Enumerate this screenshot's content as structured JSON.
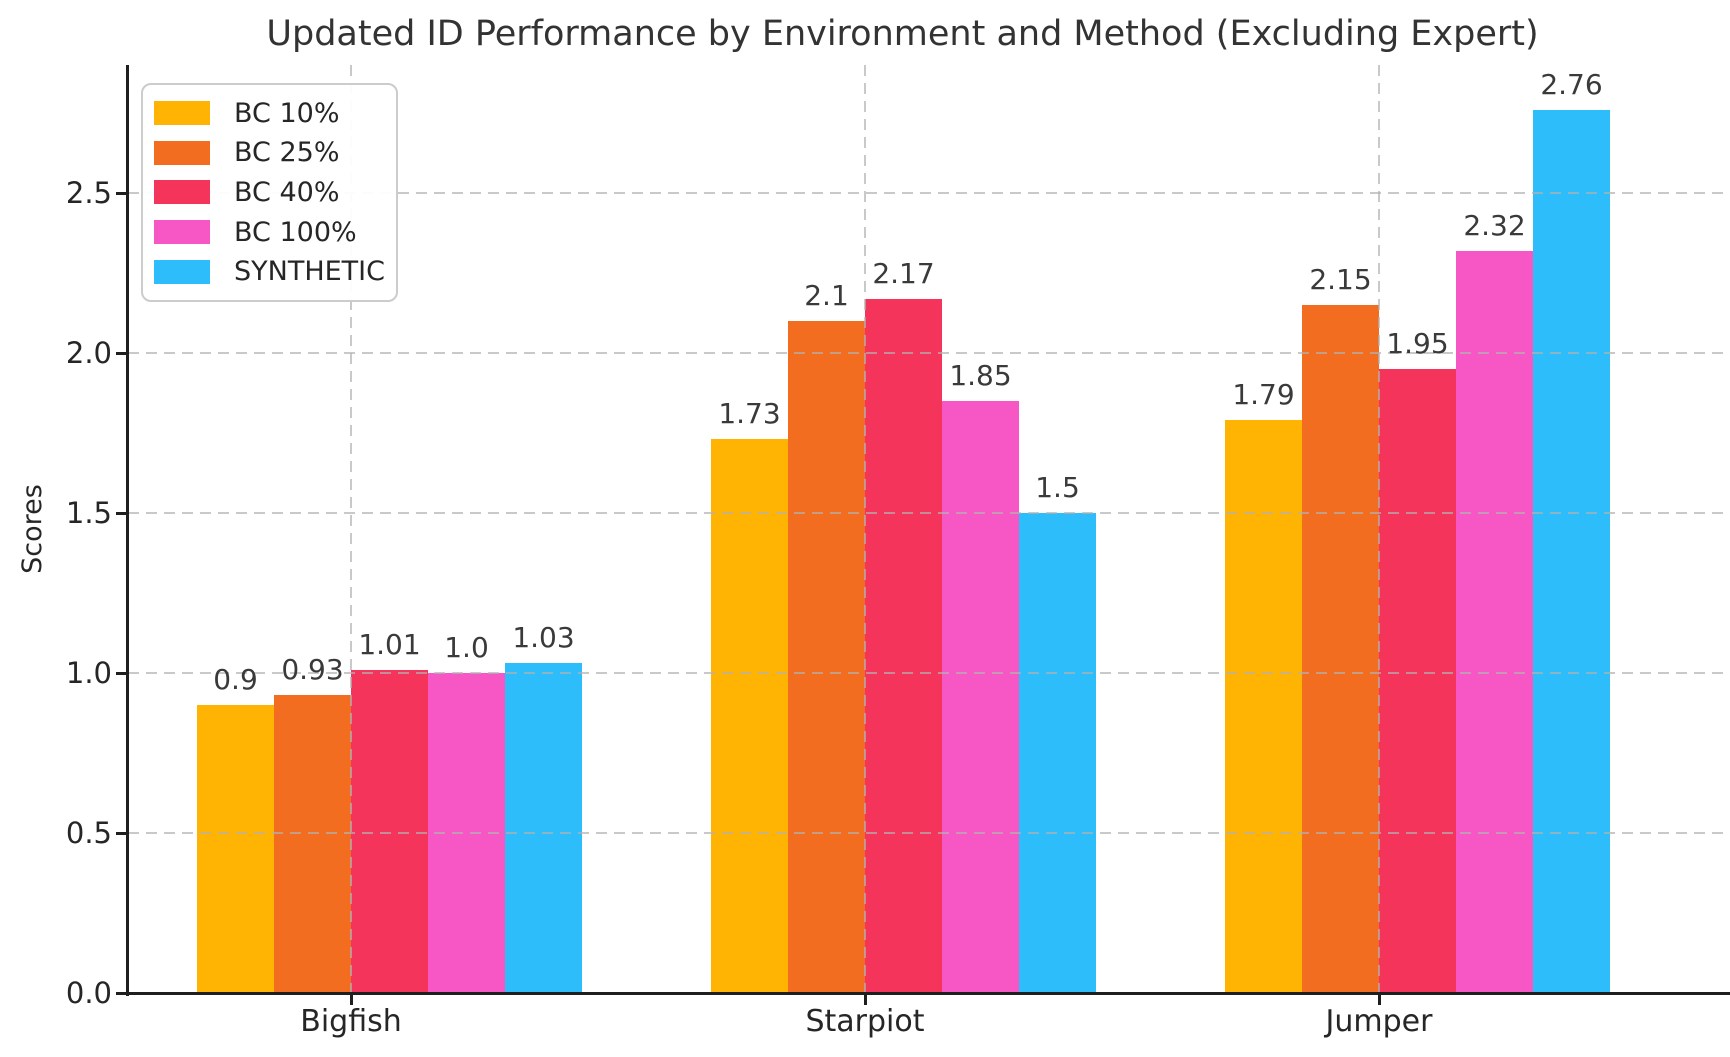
{
  "chart_data": {
    "type": "bar",
    "title": "Updated ID Performance by Environment and Method (Excluding Expert)",
    "xlabel": "",
    "ylabel": "Scores",
    "categories": [
      "Bigfish",
      "Starpiot",
      "Jumper"
    ],
    "series": [
      {
        "name": "BC 10%",
        "color": "#FFB303",
        "values": [
          0.9,
          1.73,
          1.79
        ],
        "labels": [
          "0.9",
          "1.73",
          "1.79"
        ]
      },
      {
        "name": "BC 25%",
        "color": "#F26D1F",
        "values": [
          0.93,
          2.1,
          2.15
        ],
        "labels": [
          "0.93",
          "2.1",
          "2.15"
        ]
      },
      {
        "name": "BC 40%",
        "color": "#F4345B",
        "values": [
          1.01,
          2.17,
          1.95
        ],
        "labels": [
          "1.01",
          "2.17",
          "1.95"
        ]
      },
      {
        "name": "BC 100%",
        "color": "#F757C4",
        "values": [
          1.0,
          1.85,
          2.32
        ],
        "labels": [
          "1.0",
          "1.85",
          "2.32"
        ]
      },
      {
        "name": "SYNTHETIC",
        "color": "#2CBDFA",
        "values": [
          1.03,
          1.5,
          2.76
        ],
        "labels": [
          "1.03",
          "1.5",
          "2.76"
        ]
      }
    ],
    "y_ticks": [
      "0.0",
      "0.5",
      "1.0",
      "1.5",
      "2.0",
      "2.5"
    ],
    "ylim": [
      0,
      2.9
    ],
    "grid": "dashed",
    "legend_position": "upper left",
    "axis_color": "#1f1f1f"
  }
}
